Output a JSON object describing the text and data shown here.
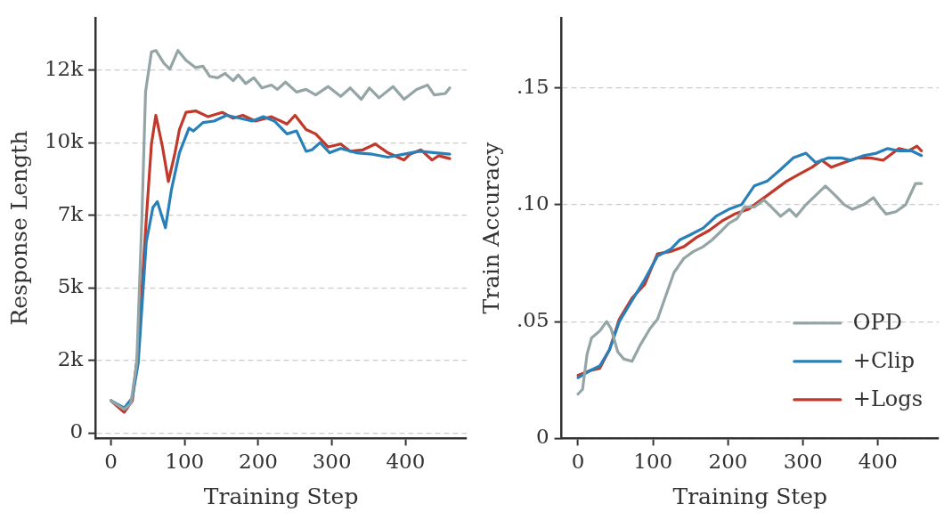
{
  "chart_data": [
    {
      "type": "line",
      "xlabel": "Training Step",
      "ylabel": "Response Length",
      "xlim": [
        -21,
        483
      ],
      "ylim": [
        -180,
        14300
      ],
      "xticks": [
        0,
        100,
        200,
        300,
        400
      ],
      "yticks": [
        0,
        {
          "value": 2500,
          "label": "2k"
        },
        {
          "value": 5000,
          "label": "5k"
        },
        {
          "value": 7500,
          "label": "7k"
        },
        {
          "value": 10000,
          "label": "10k"
        },
        {
          "value": 12500,
          "label": "12k"
        }
      ],
      "grid": "y",
      "line_style": "solid",
      "series": [
        {
          "color": "#95a5a6",
          "x": [
            0,
            18,
            27,
            35,
            42,
            47,
            55,
            61,
            72,
            80,
            91,
            102,
            115,
            125,
            134,
            145,
            155,
            166,
            173,
            183,
            194,
            205,
            218,
            226,
            237,
            252,
            265,
            278,
            295,
            312,
            325,
            340,
            351,
            364,
            383,
            398,
            415,
            430,
            439,
            454,
            460
          ],
          "values": [
            1120,
            820,
            1020,
            2410,
            7370,
            11740,
            13120,
            13170,
            12730,
            12530,
            13170,
            12830,
            12580,
            12630,
            12280,
            12230,
            12380,
            12130,
            12330,
            12030,
            12230,
            11880,
            11980,
            11830,
            12080,
            11740,
            11830,
            11640,
            11930,
            11590,
            11880,
            11490,
            11880,
            11540,
            11930,
            11490,
            11830,
            11980,
            11640,
            11690,
            11880
          ]
        },
        {
          "color": "#2980b9",
          "x": [
            0,
            18,
            29,
            37,
            48,
            57,
            63,
            74,
            82,
            93,
            106,
            112,
            125,
            140,
            157,
            175,
            192,
            207,
            222,
            239,
            252,
            265,
            273,
            284,
            297,
            312,
            333,
            355,
            376,
            398,
            419,
            441,
            460
          ],
          "values": [
            1120,
            870,
            1220,
            2410,
            6580,
            7770,
            7970,
            7070,
            8360,
            9650,
            10500,
            10400,
            10690,
            10740,
            10940,
            10840,
            10740,
            10890,
            10740,
            10300,
            10400,
            9700,
            9750,
            10000,
            9650,
            9800,
            9650,
            9600,
            9500,
            9600,
            9700,
            9650,
            9600
          ]
        },
        {
          "color": "#c0392b",
          "x": [
            0,
            18,
            29,
            37,
            48,
            55,
            61,
            70,
            78,
            87,
            93,
            102,
            115,
            132,
            151,
            166,
            179,
            196,
            218,
            239,
            250,
            265,
            278,
            295,
            312,
            325,
            342,
            359,
            376,
            398,
            406,
            421,
            436,
            445,
            460
          ],
          "values": [
            1120,
            720,
            1120,
            2910,
            7370,
            9950,
            10940,
            9850,
            8660,
            9650,
            10450,
            11040,
            11090,
            10890,
            11040,
            10840,
            10940,
            10740,
            10890,
            10640,
            10940,
            10450,
            10300,
            9850,
            9950,
            9700,
            9750,
            9950,
            9650,
            9400,
            9600,
            9750,
            9400,
            9550,
            9450
          ]
        }
      ]
    },
    {
      "type": "line",
      "xlabel": "Training Step",
      "ylabel": "Train Accuracy",
      "xlim": [
        -22,
        481
      ],
      "ylim": [
        0,
        0.18
      ],
      "xticks": [
        0,
        100,
        200,
        300,
        400
      ],
      "yticks": [
        0,
        {
          "value": 0.05,
          "label": ".05"
        },
        {
          "value": 0.1,
          "label": ".10"
        },
        {
          "value": 0.15,
          "label": ".15"
        }
      ],
      "grid": "y",
      "line_style": "solid",
      "legend": "bottom right",
      "series": [
        {
          "name": "OPD",
          "color": "#95a5a6",
          "x": [
            0,
            6,
            12,
            18,
            29,
            38,
            44,
            53,
            61,
            72,
            83,
            96,
            106,
            117,
            128,
            141,
            154,
            167,
            179,
            192,
            201,
            212,
            222,
            235,
            248,
            261,
            270,
            282,
            291,
            304,
            317,
            330,
            343,
            355,
            366,
            381,
            394,
            403,
            411,
            424,
            437,
            450,
            458
          ],
          "values": [
            0.019,
            0.021,
            0.036,
            0.043,
            0.046,
            0.05,
            0.047,
            0.037,
            0.034,
            0.033,
            0.04,
            0.047,
            0.051,
            0.061,
            0.071,
            0.077,
            0.08,
            0.082,
            0.085,
            0.089,
            0.092,
            0.094,
            0.099,
            0.099,
            0.102,
            0.098,
            0.095,
            0.098,
            0.095,
            0.1,
            0.104,
            0.108,
            0.104,
            0.1,
            0.098,
            0.1,
            0.103,
            0.099,
            0.096,
            0.097,
            0.1,
            0.109,
            0.109
          ]
        },
        {
          "name": "+Clip",
          "color": "#2980b9",
          "x": [
            0,
            16,
            29,
            42,
            55,
            72,
            89,
            106,
            124,
            136,
            149,
            167,
            184,
            201,
            218,
            235,
            252,
            270,
            287,
            304,
            317,
            334,
            351,
            364,
            381,
            398,
            413,
            428,
            445,
            458
          ],
          "values": [
            0.026,
            0.029,
            0.031,
            0.038,
            0.05,
            0.059,
            0.068,
            0.078,
            0.081,
            0.085,
            0.087,
            0.09,
            0.095,
            0.098,
            0.1,
            0.108,
            0.11,
            0.115,
            0.12,
            0.122,
            0.118,
            0.12,
            0.12,
            0.119,
            0.121,
            0.122,
            0.124,
            0.123,
            0.123,
            0.121
          ]
        },
        {
          "name": "+Logs",
          "color": "#c0392b",
          "x": [
            0,
            16,
            29,
            42,
            55,
            72,
            89,
            106,
            124,
            141,
            158,
            175,
            192,
            209,
            227,
            244,
            261,
            278,
            295,
            312,
            325,
            338,
            355,
            373,
            390,
            407,
            428,
            441,
            452,
            458
          ],
          "values": [
            0.027,
            0.029,
            0.03,
            0.038,
            0.051,
            0.06,
            0.066,
            0.079,
            0.08,
            0.082,
            0.086,
            0.089,
            0.093,
            0.096,
            0.098,
            0.102,
            0.106,
            0.11,
            0.113,
            0.116,
            0.119,
            0.116,
            0.118,
            0.12,
            0.12,
            0.119,
            0.124,
            0.123,
            0.125,
            0.123
          ]
        }
      ]
    }
  ]
}
